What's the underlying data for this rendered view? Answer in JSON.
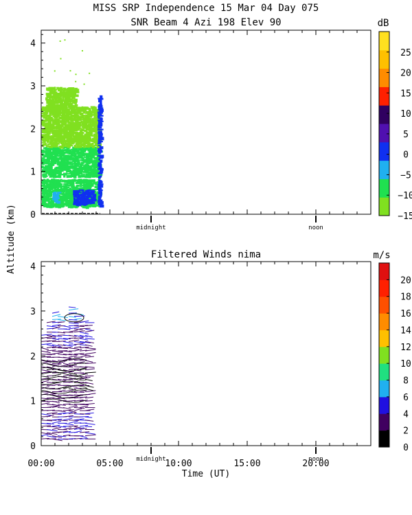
{
  "figure": {
    "title_line1": "MISS SRP Independence  15 Mar 04 Day 075",
    "title_line2": "SNR Beam 4 Azi 198 Elev 90",
    "shared_ylabel": "Altitude (km)",
    "xlabel": "Time (UT)",
    "x_tick_labels": [
      "00:00",
      "05:00",
      "10:00",
      "15:00",
      "20:00"
    ],
    "markers": [
      {
        "label": "midnight",
        "hour": 8.0
      },
      {
        "label": "noon",
        "hour": 20.0
      }
    ]
  },
  "chart_data": [
    {
      "type": "heatmap",
      "title": "",
      "xlabel": "",
      "ylabel": "Altitude (km)",
      "xlim": [
        0,
        24
      ],
      "ylim": [
        0,
        4.3
      ],
      "y_ticks": [
        0,
        1,
        2,
        3,
        4
      ],
      "data_time_range": [
        0.0,
        4.3
      ],
      "colorbar": {
        "unit": "dB",
        "min": -15,
        "max": 30,
        "tick_values": [
          -15,
          -10,
          -5,
          0,
          5,
          10,
          15,
          20,
          25
        ],
        "tick_labels": [
          "−15",
          "−10",
          "−5",
          "0",
          "5",
          "10",
          "15",
          "20",
          "25"
        ],
        "colors": [
          "#80e020",
          "#20e050",
          "#20b0f0",
          "#1030f0",
          "#5010b0",
          "#300060",
          "#ff2000",
          "#ff8c00",
          "#ffc000",
          "#ffe020"
        ]
      },
      "regions": [
        {
          "t0": 0.0,
          "t1": 4.2,
          "alt0": 0.2,
          "alt1": 0.85,
          "snr": -8
        },
        {
          "t0": 0.0,
          "t1": 4.2,
          "alt0": 0.9,
          "alt1": 1.6,
          "snr": -10
        },
        {
          "t0": 0.0,
          "t1": 4.2,
          "alt0": 1.6,
          "alt1": 2.55,
          "snr": -12
        },
        {
          "t0": 0.3,
          "t1": 2.5,
          "alt0": 2.55,
          "alt1": 3.0,
          "snr": -13
        },
        {
          "t0": 0.8,
          "t1": 1.2,
          "alt0": 0.3,
          "alt1": 0.55,
          "snr": -2
        },
        {
          "t0": 2.3,
          "t1": 3.8,
          "alt0": 0.25,
          "alt1": 0.6,
          "snr": -1
        },
        {
          "t0": 4.1,
          "t1": 4.3,
          "alt0": 0.2,
          "alt1": 2.8,
          "snr": 2
        }
      ]
    },
    {
      "type": "scatter",
      "title": "Filtered Winds nima",
      "xlabel": "Time (UT)",
      "ylabel": "Altitude (km)",
      "xlim": [
        0,
        24
      ],
      "ylim": [
        0,
        4.1
      ],
      "y_ticks": [
        0,
        1,
        2,
        3,
        4
      ],
      "data_time_range": [
        0.0,
        3.5
      ],
      "colorbar": {
        "unit": "m/s",
        "min": 0,
        "max": 22,
        "tick_values": [
          0,
          2,
          4,
          6,
          8,
          10,
          12,
          14,
          16,
          18,
          20
        ],
        "tick_labels": [
          "0",
          "2",
          "4",
          "6",
          "8",
          "10",
          "12",
          "14",
          "16",
          "18",
          "20"
        ],
        "colors": [
          "#000000",
          "#400060",
          "#2010e0",
          "#20b0f0",
          "#20e080",
          "#80e020",
          "#ffc000",
          "#ff8c00",
          "#ff5000",
          "#ff2000",
          "#e01010"
        ]
      },
      "profile_times": [
        0.0,
        0.4,
        0.8,
        1.2,
        1.6,
        2.0,
        2.4,
        2.8,
        3.2
      ],
      "profile_tops": [
        2.5,
        2.8,
        3.0,
        2.9,
        2.7,
        3.1,
        3.0,
        2.8,
        2.8
      ],
      "speed_by_altitude": [
        {
          "alt": 0.5,
          "speed": 4
        },
        {
          "alt": 1.0,
          "speed": 3
        },
        {
          "alt": 1.5,
          "speed": 2
        },
        {
          "alt": 2.0,
          "speed": 3
        },
        {
          "alt": 2.5,
          "speed": 4
        },
        {
          "alt": 3.0,
          "speed": 6
        }
      ]
    }
  ]
}
